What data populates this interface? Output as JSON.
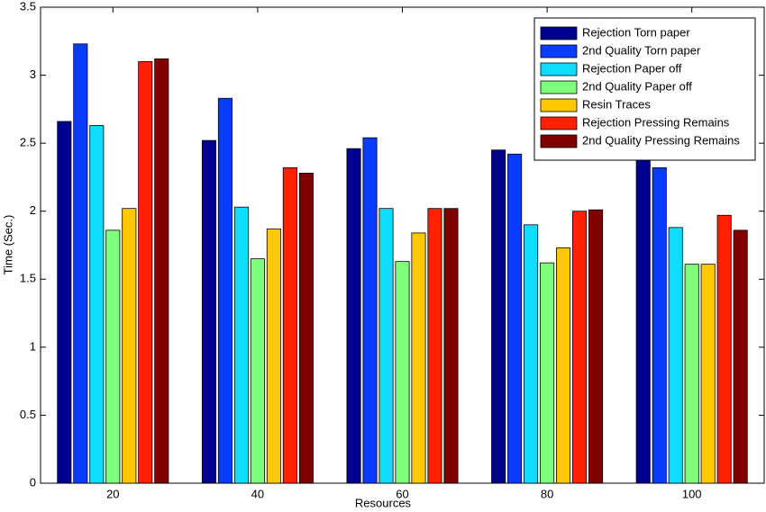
{
  "chart_data": {
    "type": "bar",
    "x_label": "Resources",
    "y_label": "Time (Sec.)",
    "categories": [
      "20",
      "40",
      "60",
      "80",
      "100"
    ],
    "series": [
      {
        "name": "Rejection Torn paper",
        "color": "#00008f",
        "values": [
          2.66,
          2.52,
          2.46,
          2.45,
          2.43
        ]
      },
      {
        "name": "2nd Quality Torn paper",
        "color": "#0a3cff",
        "values": [
          3.23,
          2.83,
          2.54,
          2.42,
          2.32
        ]
      },
      {
        "name": "Rejection Paper off",
        "color": "#10dcff",
        "values": [
          2.63,
          2.03,
          2.02,
          1.9,
          1.88
        ]
      },
      {
        "name": "2nd Quality Paper off",
        "color": "#80ff7c",
        "values": [
          1.86,
          1.65,
          1.63,
          1.62,
          1.61
        ]
      },
      {
        "name": "Resin Traces",
        "color": "#ffc800",
        "values": [
          2.02,
          1.87,
          1.84,
          1.73,
          1.61
        ]
      },
      {
        "name": "Rejection Pressing Remains",
        "color": "#ff2200",
        "values": [
          3.1,
          2.32,
          2.02,
          2.0,
          1.97
        ]
      },
      {
        "name": "2nd Quality Pressing Remains",
        "color": "#800000",
        "values": [
          3.12,
          2.28,
          2.02,
          2.01,
          1.86
        ]
      }
    ],
    "ylim": [
      0,
      3.5
    ],
    "yticks": [
      0,
      0.5,
      1,
      1.5,
      2,
      2.5,
      3,
      3.5
    ],
    "grid": false,
    "legend": "upper right"
  }
}
